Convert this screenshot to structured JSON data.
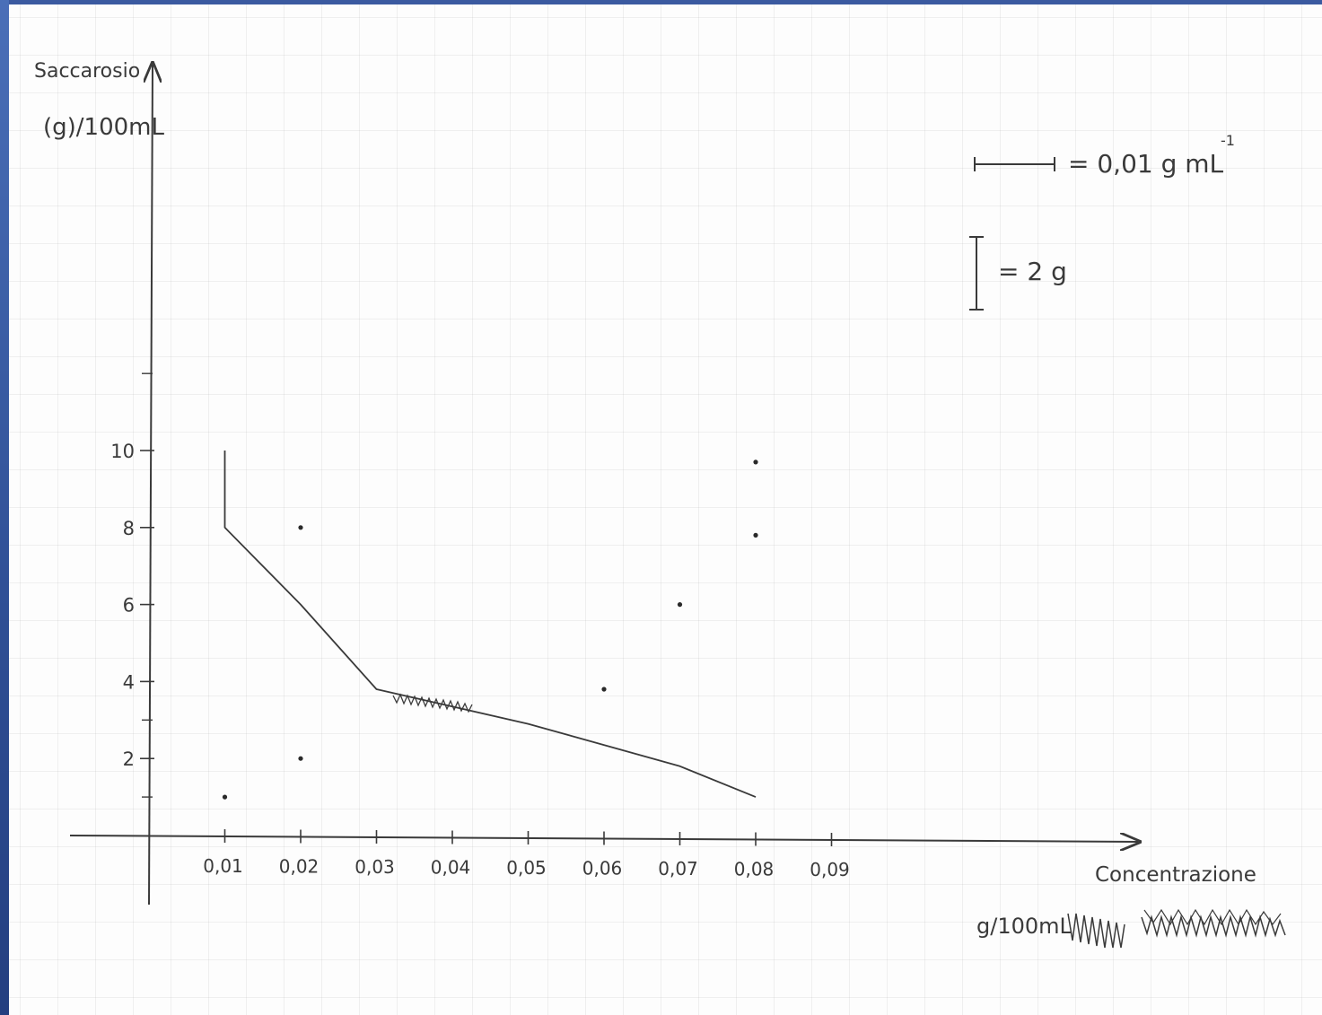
{
  "chart_data": {
    "type": "line",
    "title": "",
    "ylabel_line1": "Saccarosio",
    "ylabel_line2": "(g)/100mL",
    "xlabel": "Concentrazione",
    "xunit": "g/100mL",
    "x_ticks": [
      "0,01",
      "0,02",
      "0,03",
      "0,04",
      "0,05",
      "0,06",
      "0,07",
      "0,08",
      "0,09"
    ],
    "y_ticks": [
      "2",
      "4",
      "6",
      "8",
      "10"
    ],
    "xlim": [
      0,
      0.12
    ],
    "ylim": [
      -1.8,
      20
    ],
    "grid": true,
    "legend": {
      "scale_x_label": "= 0,01 g mL",
      "scale_x_sup": "-1",
      "scale_y_label": "= 2 g"
    },
    "series": [
      {
        "x": [
          0.01,
          0.01,
          0.02,
          0.03,
          0.05,
          0.07,
          0.08
        ],
        "y": [
          10,
          8,
          6,
          3.8,
          2.9,
          1.8,
          1
        ]
      }
    ],
    "points": [
      {
        "x": 0.01,
        "y": 1
      },
      {
        "x": 0.02,
        "y": 2
      },
      {
        "x": 0.02,
        "y": 8
      },
      {
        "x": 0.06,
        "y": 3.8
      },
      {
        "x": 0.07,
        "y": 6
      },
      {
        "x": 0.08,
        "y": 7.8
      },
      {
        "x": 0.08,
        "y": 9.7
      }
    ],
    "line_color": "#3a3a3a"
  }
}
